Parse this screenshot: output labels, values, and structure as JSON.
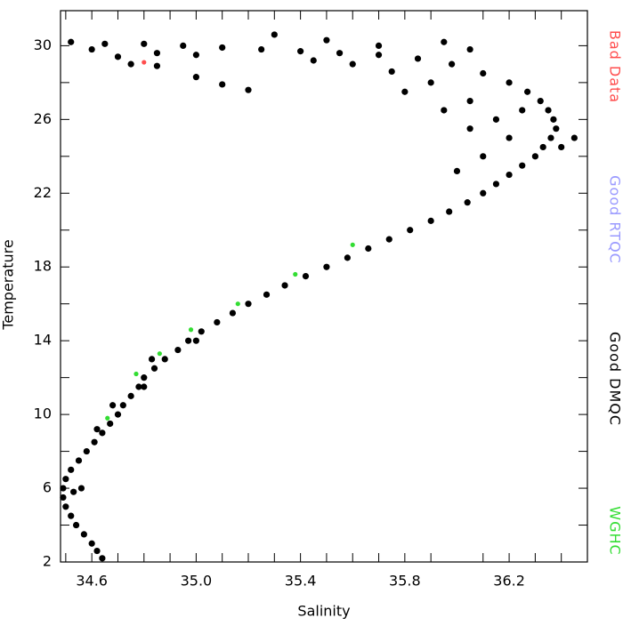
{
  "chart_data": {
    "type": "scatter",
    "xlabel": "Salinity",
    "ylabel": "Temperature",
    "xlim": [
      34.48,
      36.5
    ],
    "ylim": [
      2,
      31.9
    ],
    "xticks": [
      34.6,
      {
        "value": 35,
        "label": "35.0"
      },
      35.4,
      35.8,
      36.2
    ],
    "xminorticks": [
      34.5,
      34.7,
      34.8,
      34.9,
      35.1,
      35.2,
      35.3,
      35.5,
      35.6,
      35.7,
      35.9,
      36.1,
      36.3,
      36.4
    ],
    "yticks": [
      2,
      6,
      10,
      14,
      18,
      22,
      26,
      30
    ],
    "yminorticks": [
      4,
      8,
      12,
      16,
      20,
      24,
      28
    ],
    "series": [
      {
        "name": "Bad Data",
        "color": "#ff4d4d",
        "x": [
          34.8
        ],
        "y": [
          29.1
        ]
      },
      {
        "name": "Good RTQC",
        "color": "#9999ff",
        "x": [],
        "y": []
      },
      {
        "name": "Good DMQC",
        "color": "#000000",
        "x": [
          34.64,
          34.62,
          34.6,
          34.57,
          34.54,
          34.52,
          34.5,
          34.49,
          34.49,
          34.5,
          34.52,
          34.55,
          34.58,
          34.61,
          34.64,
          34.67,
          34.7,
          34.72,
          34.75,
          34.78,
          34.8,
          34.84,
          34.88,
          34.93,
          34.97,
          35.02,
          35.08,
          35.14,
          35.2,
          35.27,
          35.34,
          35.42,
          35.5,
          35.58,
          35.66,
          35.74,
          35.82,
          35.9,
          35.97,
          36.04,
          36.1,
          36.15,
          36.2,
          36.25,
          36.3,
          36.33,
          36.36,
          36.38,
          36.37,
          36.35,
          36.32,
          36.27,
          36.2,
          36.1,
          35.98,
          35.85,
          35.7,
          35.55,
          35.4,
          35.25,
          35.1,
          34.95,
          34.8,
          34.65,
          34.52,
          36.1,
          36.0,
          36.15,
          36.05,
          35.9,
          35.75,
          35.6,
          35.45,
          36.2,
          36.25,
          36.4,
          36.45,
          35.8,
          35.95,
          36.05,
          35.5,
          35.3,
          35.0,
          34.85,
          34.7,
          34.6,
          35.7,
          35.95,
          36.05,
          34.56,
          34.53,
          34.62,
          34.68,
          34.8,
          34.83,
          35.0,
          34.75,
          34.85,
          35.0,
          35.1,
          35.2
        ],
        "y": [
          2.2,
          2.6,
          3.0,
          3.5,
          4.0,
          4.5,
          5.0,
          5.5,
          6.0,
          6.5,
          7.0,
          7.5,
          8.0,
          8.5,
          9.0,
          9.5,
          10.0,
          10.5,
          11.0,
          11.5,
          12.0,
          12.5,
          13.0,
          13.5,
          14.0,
          14.5,
          15.0,
          15.5,
          16.0,
          16.5,
          17.0,
          17.5,
          18.0,
          18.5,
          19.0,
          19.5,
          20.0,
          20.5,
          21.0,
          21.5,
          22.0,
          22.5,
          23.0,
          23.5,
          24.0,
          24.5,
          25.0,
          25.5,
          26.0,
          26.5,
          27.0,
          27.5,
          28.0,
          28.5,
          29.0,
          29.3,
          29.5,
          29.6,
          29.7,
          29.8,
          29.9,
          30.0,
          30.1,
          30.1,
          30.2,
          24.0,
          23.2,
          26.0,
          27.0,
          28.0,
          28.6,
          29.0,
          29.2,
          25.0,
          26.5,
          24.5,
          25.0,
          27.5,
          26.5,
          25.5,
          30.3,
          30.6,
          29.5,
          29.6,
          29.4,
          29.8,
          30.0,
          30.2,
          29.8,
          6.0,
          5.8,
          9.2,
          10.5,
          11.5,
          13.0,
          14.0,
          29.0,
          28.9,
          28.3,
          27.9,
          27.6
        ]
      },
      {
        "name": "WGHC",
        "color": "#33dd33",
        "x": [
          34.66,
          34.77,
          34.86,
          34.98,
          35.16,
          35.38,
          35.6
        ],
        "y": [
          9.8,
          12.2,
          13.3,
          14.6,
          16.0,
          17.6,
          19.2
        ]
      }
    ]
  }
}
